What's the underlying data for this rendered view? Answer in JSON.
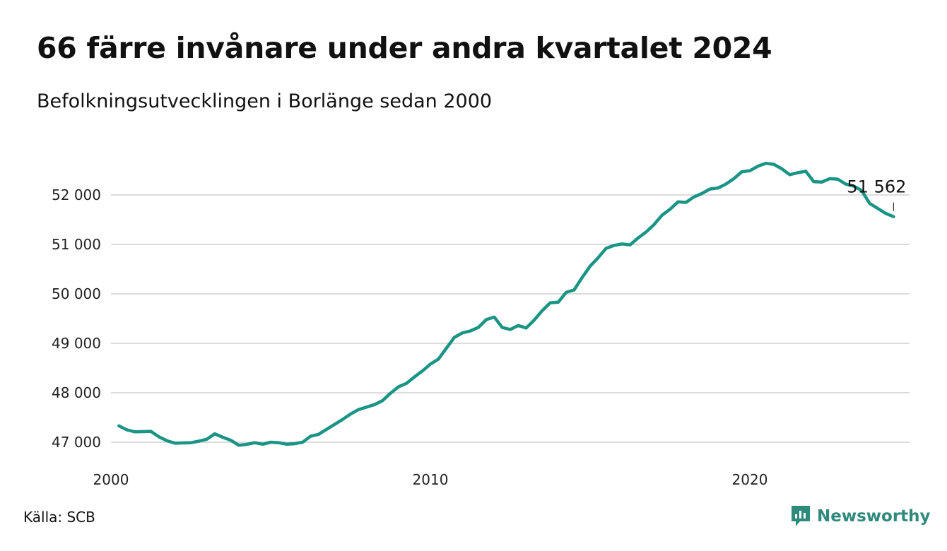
{
  "header": {
    "title": "66 färre invånare under andra kvartalet 2024",
    "subtitle": "Befolkningsutvecklingen i Borlänge sedan 2000"
  },
  "footer": {
    "source": "Källa: SCB",
    "brand": "Newsworthy",
    "brand_icon": "chart-bubble-icon"
  },
  "colors": {
    "line": "#1a9484",
    "grid": "#dcdcdc",
    "brand": "#2f8a7c"
  },
  "chart_data": {
    "type": "line",
    "title": "66 färre invånare under andra kvartalet 2024",
    "subtitle": "Befolkningsutvecklingen i Borlänge sedan 2000",
    "xlabel": "",
    "ylabel": "",
    "xlim": [
      2000,
      2025
    ],
    "ylim": [
      46800,
      52800
    ],
    "x_ticks": [
      2000,
      2010,
      2020
    ],
    "x_tick_labels": [
      "2000",
      "2010",
      "2020"
    ],
    "y_ticks": [
      47000,
      48000,
      49000,
      50000,
      51000,
      52000
    ],
    "y_tick_labels": [
      "47 000",
      "48 000",
      "49 000",
      "50 000",
      "51 000",
      "52 000"
    ],
    "grid": "horizontal",
    "legend": "none",
    "x": [
      2000.25,
      2000.5,
      2000.75,
      2001.0,
      2001.25,
      2001.5,
      2001.75,
      2002.0,
      2002.25,
      2002.5,
      2002.75,
      2003.0,
      2003.25,
      2003.5,
      2003.75,
      2004.0,
      2004.25,
      2004.5,
      2004.75,
      2005.0,
      2005.25,
      2005.5,
      2005.75,
      2006.0,
      2006.25,
      2006.5,
      2006.75,
      2007.0,
      2007.25,
      2007.5,
      2007.75,
      2008.0,
      2008.25,
      2008.5,
      2008.75,
      2009.0,
      2009.25,
      2009.5,
      2009.75,
      2010.0,
      2010.25,
      2010.5,
      2010.75,
      2011.0,
      2011.25,
      2011.5,
      2011.75,
      2012.0,
      2012.25,
      2012.5,
      2012.75,
      2013.0,
      2013.25,
      2013.5,
      2013.75,
      2014.0,
      2014.25,
      2014.5,
      2014.75,
      2015.0,
      2015.25,
      2015.5,
      2015.75,
      2016.0,
      2016.25,
      2016.5,
      2016.75,
      2017.0,
      2017.25,
      2017.5,
      2017.75,
      2018.0,
      2018.25,
      2018.5,
      2018.75,
      2019.0,
      2019.25,
      2019.5,
      2019.75,
      2020.0,
      2020.25,
      2020.5,
      2020.75,
      2021.0,
      2021.25,
      2021.5,
      2021.75,
      2022.0,
      2022.25,
      2022.5,
      2022.75,
      2023.0,
      2023.25,
      2023.5,
      2023.75,
      2024.0,
      2024.25,
      2024.5
    ],
    "series": [
      {
        "values": [
          47330,
          47250,
          47210,
          47215,
          47220,
          47110,
          47030,
          46980,
          46985,
          46990,
          47020,
          47060,
          47170,
          47100,
          47040,
          46940,
          46955,
          46990,
          46960,
          47000,
          46990,
          46960,
          46970,
          47000,
          47120,
          47160,
          47260,
          47360,
          47460,
          47570,
          47660,
          47710,
          47760,
          47840,
          47990,
          48120,
          48190,
          48320,
          48440,
          48580,
          48680,
          48900,
          49120,
          49210,
          49250,
          49320,
          49480,
          49530,
          49320,
          49280,
          49360,
          49310,
          49470,
          49660,
          49820,
          49830,
          50030,
          50080,
          50330,
          50560,
          50730,
          50920,
          50980,
          51010,
          50990,
          51130,
          51250,
          51400,
          51590,
          51710,
          51860,
          51850,
          51960,
          52030,
          52120,
          52140,
          52220,
          52330,
          52470,
          52490,
          52580,
          52640,
          52620,
          52530,
          52410,
          52450,
          52480,
          52270,
          52260,
          52330,
          52320,
          52220,
          52180,
          52090,
          51830,
          51730,
          51628,
          51562
        ]
      }
    ],
    "annotations": [
      {
        "x": 2024.5,
        "y": 51562,
        "text": "51 562"
      }
    ]
  }
}
